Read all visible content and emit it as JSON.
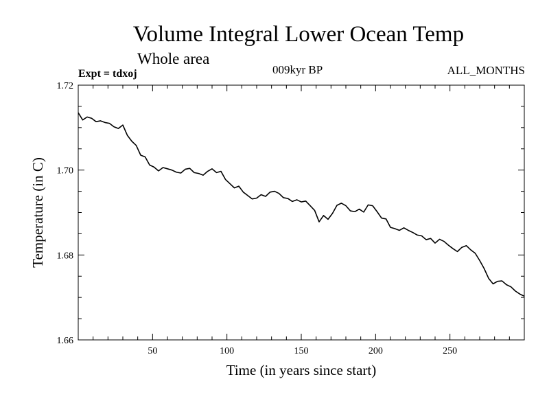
{
  "chart_data": {
    "type": "line",
    "title": "Volume Integral Lower Ocean Temp",
    "subtitle": "Whole area",
    "annotations": {
      "experiment": "Expt = tdxoj",
      "period": "009kyr BP",
      "months": "ALL_MONTHS"
    },
    "xlabel": "Time (in years since start)",
    "ylabel": "Temperature (in C)",
    "xlim": [
      0,
      300
    ],
    "ylim": [
      1.66,
      1.72
    ],
    "xticks": [
      50,
      100,
      150,
      200,
      250
    ],
    "xtick_labels": [
      "50",
      "100",
      "150",
      "200",
      "250"
    ],
    "yticks": [
      1.66,
      1.68,
      1.7,
      1.72
    ],
    "ytick_labels": [
      "1.66",
      "1.68",
      "1.70",
      "1.72"
    ],
    "grid": false,
    "series": [
      {
        "color": "#000000",
        "x": [
          0,
          3,
          6,
          9,
          12,
          15,
          18,
          21,
          24,
          27,
          30,
          33,
          36,
          39,
          42,
          45,
          48,
          51,
          54,
          57,
          60,
          63,
          66,
          69,
          72,
          75,
          78,
          81,
          84,
          87,
          90,
          93,
          96,
          99,
          102,
          105,
          108,
          111,
          114,
          117,
          120,
          123,
          126,
          129,
          132,
          135,
          138,
          141,
          144,
          147,
          150,
          153,
          156,
          159,
          162,
          165,
          168,
          171,
          174,
          177,
          180,
          183,
          186,
          189,
          192,
          195,
          198,
          201,
          204,
          207,
          210,
          213,
          216,
          219,
          222,
          225,
          228,
          231,
          234,
          237,
          240,
          243,
          246,
          249,
          252,
          255,
          258,
          261,
          264,
          267,
          270,
          273,
          276,
          279,
          282,
          285,
          288,
          291,
          294,
          297,
          300
        ],
        "y": [
          1.7135,
          1.7118,
          1.7125,
          1.7122,
          1.7114,
          1.7116,
          1.7112,
          1.711,
          1.7102,
          1.7098,
          1.7106,
          1.7082,
          1.7068,
          1.7058,
          1.7035,
          1.7031,
          1.7012,
          1.7007,
          1.6998,
          1.7006,
          1.7003,
          1.7,
          1.6995,
          1.6993,
          1.7002,
          1.7004,
          1.6994,
          1.6992,
          1.6988,
          1.6997,
          1.7003,
          1.6994,
          1.6997,
          1.6978,
          1.6968,
          1.6958,
          1.6962,
          1.6948,
          1.694,
          1.6932,
          1.6934,
          1.6942,
          1.6938,
          1.6948,
          1.695,
          1.6945,
          1.6935,
          1.6933,
          1.6926,
          1.693,
          1.6925,
          1.6927,
          1.6916,
          1.6905,
          1.6878,
          1.6893,
          1.6884,
          1.6898,
          1.6917,
          1.6922,
          1.6916,
          1.6904,
          1.6902,
          1.6908,
          1.6901,
          1.6918,
          1.6916,
          1.6902,
          1.6887,
          1.6885,
          1.6865,
          1.6862,
          1.6858,
          1.6864,
          1.6858,
          1.6853,
          1.6847,
          1.6845,
          1.6836,
          1.6839,
          1.6828,
          1.6837,
          1.6832,
          1.6823,
          1.6815,
          1.6808,
          1.6818,
          1.6822,
          1.6812,
          1.6804,
          1.6787,
          1.6768,
          1.6745,
          1.6732,
          1.6738,
          1.6739,
          1.673,
          1.6725,
          1.6715,
          1.6708,
          1.6703
        ]
      }
    ]
  }
}
